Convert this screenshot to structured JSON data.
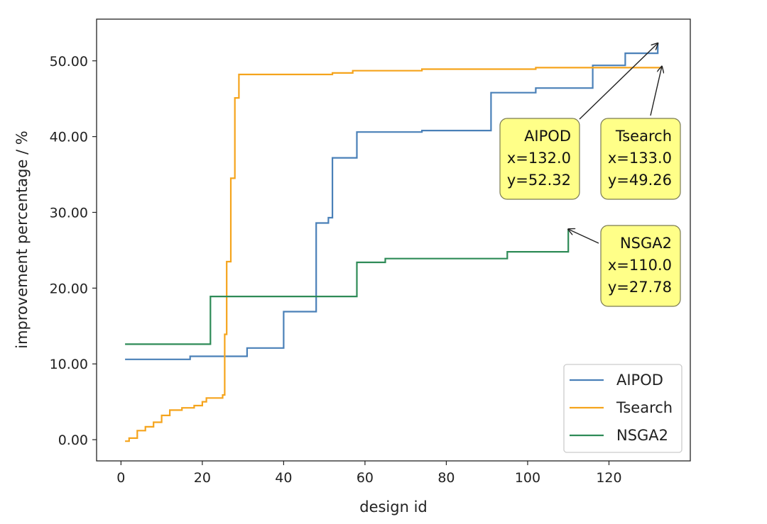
{
  "chart_data": {
    "type": "line",
    "line_style": "step",
    "xlabel": "design id",
    "ylabel": "improvement percentage / %",
    "xlim": [
      -6,
      140
    ],
    "ylim": [
      -2.8,
      55.5
    ],
    "xticks": [
      0,
      20,
      40,
      60,
      80,
      100,
      120
    ],
    "yticks": [
      0,
      10,
      20,
      30,
      40,
      50
    ],
    "ytick_labels": [
      "0.00",
      "10.00",
      "20.00",
      "30.00",
      "40.00",
      "50.00"
    ],
    "grid": false,
    "legend_position": "lower-right",
    "series": [
      {
        "name": "AIPOD",
        "color": "#4a80b8",
        "points": [
          [
            1,
            10.6
          ],
          [
            17,
            11.0
          ],
          [
            31,
            12.1
          ],
          [
            40,
            16.9
          ],
          [
            48,
            28.6
          ],
          [
            51,
            29.3
          ],
          [
            52,
            37.2
          ],
          [
            58,
            40.6
          ],
          [
            74,
            40.8
          ],
          [
            91,
            45.8
          ],
          [
            102,
            46.4
          ],
          [
            116,
            49.4
          ],
          [
            124,
            51.0
          ],
          [
            132,
            52.32
          ]
        ]
      },
      {
        "name": "Tsearch",
        "color": "#f5a41c",
        "points": [
          [
            1,
            -0.2
          ],
          [
            2,
            0.2
          ],
          [
            4,
            1.2
          ],
          [
            6,
            1.7
          ],
          [
            8,
            2.3
          ],
          [
            10,
            3.2
          ],
          [
            12,
            3.9
          ],
          [
            15,
            4.2
          ],
          [
            18,
            4.5
          ],
          [
            20,
            5.0
          ],
          [
            21,
            5.5
          ],
          [
            25,
            5.9
          ],
          [
            25.5,
            13.9
          ],
          [
            26,
            23.5
          ],
          [
            27,
            34.5
          ],
          [
            28,
            45.1
          ],
          [
            29,
            48.2
          ],
          [
            52,
            48.4
          ],
          [
            57,
            48.7
          ],
          [
            74,
            48.9
          ],
          [
            102,
            49.1
          ],
          [
            133,
            49.26
          ]
        ]
      },
      {
        "name": "NSGA2",
        "color": "#2e8b57",
        "points": [
          [
            1,
            12.6
          ],
          [
            22,
            18.9
          ],
          [
            58,
            23.4
          ],
          [
            65,
            23.9
          ],
          [
            95,
            24.8
          ],
          [
            110,
            27.78
          ]
        ]
      }
    ],
    "annotations": [
      {
        "series": "AIPOD",
        "lines": [
          "AIPOD",
          "x=132.0",
          "y=52.32"
        ],
        "x": 132.0,
        "y": 52.32
      },
      {
        "series": "Tsearch",
        "lines": [
          "Tsearch",
          "x=133.0",
          "y=49.26"
        ],
        "x": 133.0,
        "y": 49.26
      },
      {
        "series": "NSGA2",
        "lines": [
          "NSGA2",
          "x=110.0",
          "y=27.78"
        ],
        "x": 110.0,
        "y": 27.78
      }
    ],
    "annotation_box_color": "#ffff88",
    "annotation_border_color": "#7a7a52"
  }
}
